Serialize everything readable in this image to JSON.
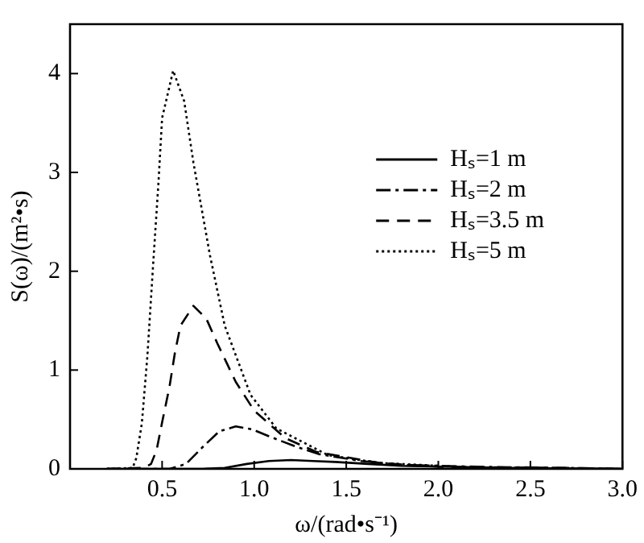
{
  "chart_data": {
    "type": "line",
    "xlabel": "ω/(rad•s⁻¹)",
    "ylabel": "S(ω)/(m²•s)",
    "xlim": [
      0,
      3
    ],
    "xticks": [
      {
        "value": 0.5,
        "label": "0.5"
      },
      {
        "value": 1,
        "label": "1.0"
      },
      {
        "value": 1.5,
        "label": "1.5"
      },
      {
        "value": 2,
        "label": "2.0"
      },
      {
        "value": 2.5,
        "label": "2.5"
      },
      {
        "value": 3,
        "label": "3.0"
      }
    ],
    "ylim": [
      0,
      4.5
    ],
    "yticks": [
      0,
      1,
      2,
      3,
      4
    ],
    "grid": false,
    "legend": "top right",
    "marker": "none",
    "series": [
      {
        "name": "Hₛ=1 m",
        "color": "#000000",
        "line_style": "solid",
        "x": [
          0.2,
          0.72,
          0.84,
          0.96,
          1.08,
          1.2,
          1.32,
          1.44,
          1.62,
          1.8,
          2.1,
          2.4,
          3.0
        ],
        "values": [
          0,
          0,
          0.01,
          0.05,
          0.08,
          0.09,
          0.08,
          0.07,
          0.05,
          0.03,
          0.02,
          0.01,
          0
        ]
      },
      {
        "name": "Hₛ=2 m",
        "color": "#000000",
        "line_style": "dashdot",
        "x": [
          0.2,
          0.54,
          0.63,
          0.72,
          0.81,
          0.9,
          0.99,
          1.08,
          1.22,
          1.35,
          1.58,
          1.8,
          2.25,
          2.7,
          3.0
        ],
        "values": [
          0,
          0,
          0.05,
          0.22,
          0.38,
          0.43,
          0.4,
          0.33,
          0.23,
          0.15,
          0.08,
          0.04,
          0.02,
          0.01,
          0
        ]
      },
      {
        "name": "Hₛ=3.5 m",
        "color": "#000000",
        "line_style": "dashed",
        "x": [
          0.2,
          0.4,
          0.44,
          0.47,
          0.5,
          0.54,
          0.57,
          0.6,
          0.67,
          0.74,
          0.8,
          0.9,
          1.0,
          1.17,
          1.34,
          1.68,
          2.01,
          2.68,
          3.0
        ],
        "values": [
          0,
          0.01,
          0.05,
          0.19,
          0.47,
          0.83,
          1.18,
          1.45,
          1.65,
          1.52,
          1.27,
          0.88,
          0.59,
          0.31,
          0.17,
          0.06,
          0.02,
          0.01,
          0
        ]
      },
      {
        "name": "Hₛ=5 m",
        "color": "#000000",
        "line_style": "dotted",
        "x": [
          0.2,
          0.34,
          0.36,
          0.39,
          0.42,
          0.45,
          0.48,
          0.5,
          0.56,
          0.62,
          0.67,
          0.76,
          0.84,
          0.98,
          1.12,
          1.4,
          1.68,
          2.24,
          3.0
        ],
        "values": [
          0,
          0.01,
          0.11,
          0.46,
          1.14,
          2.03,
          2.89,
          3.55,
          4.03,
          3.72,
          3.1,
          2.16,
          1.45,
          0.75,
          0.41,
          0.14,
          0.06,
          0.01,
          0
        ]
      }
    ]
  }
}
